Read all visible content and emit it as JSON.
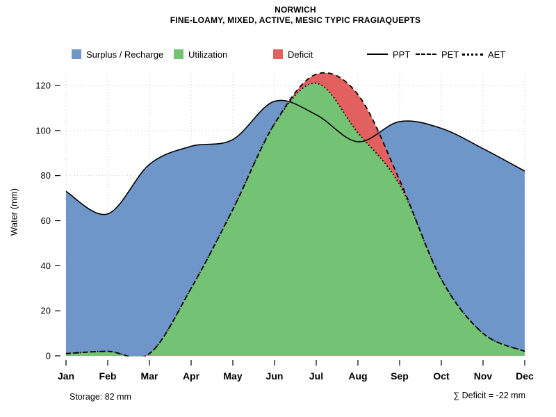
{
  "title": "NORWICH",
  "subtitle": "FINE-LOAMY, MIXED, ACTIVE, MESIC TYPIC FRAGIAQUEPTS",
  "legend": {
    "areas": [
      {
        "label": "Surplus / Recharge",
        "color": "#6e96c8"
      },
      {
        "label": "Utilization",
        "color": "#74c374"
      },
      {
        "label": "Deficit",
        "color": "#e2605f"
      }
    ],
    "lines": [
      {
        "label": "PPT",
        "style": "solid"
      },
      {
        "label": "PET",
        "style": "dashed"
      },
      {
        "label": "AET",
        "style": "dotted"
      }
    ]
  },
  "footer": {
    "storage": "Storage: 82 mm",
    "deficit_sum": "∑ Deficit = -22 mm"
  },
  "chart_data": {
    "type": "area",
    "title": "NORWICH",
    "subtitle": "FINE-LOAMY, MIXED, ACTIVE, MESIC TYPIC FRAGIAQUEPTS",
    "xlabel": "",
    "ylabel": "Water (mm)",
    "categories": [
      "Jan",
      "Feb",
      "Mar",
      "Apr",
      "May",
      "Jun",
      "Jul",
      "Aug",
      "Sep",
      "Oct",
      "Nov",
      "Dec"
    ],
    "yticks": [
      0,
      20,
      40,
      60,
      80,
      100,
      120
    ],
    "ylim": [
      0,
      130
    ],
    "grid": true,
    "legend_position": "top",
    "series": [
      {
        "name": "PPT",
        "line": "solid",
        "values": [
          73,
          63,
          85,
          93,
          96,
          113,
          107,
          95,
          104,
          101,
          92,
          82
        ]
      },
      {
        "name": "PET",
        "line": "dashed",
        "values": [
          1,
          2,
          1,
          30,
          65,
          103,
          125,
          116,
          78,
          34,
          10,
          2
        ]
      },
      {
        "name": "AET",
        "line": "dotted",
        "values": [
          1,
          2,
          1,
          30,
          65,
          103,
          121,
          99,
          76,
          34,
          10,
          2
        ]
      }
    ],
    "fills": [
      {
        "series": "PPT",
        "label": "Surplus / Recharge",
        "color": "#6e96c8"
      },
      {
        "series": "PET",
        "label": "Deficit",
        "color": "#e2605f"
      },
      {
        "series": "AET",
        "label": "Utilization",
        "color": "#74c374"
      }
    ],
    "annotations": {
      "storage_mm": 82,
      "deficit_sum_mm": -22
    }
  }
}
